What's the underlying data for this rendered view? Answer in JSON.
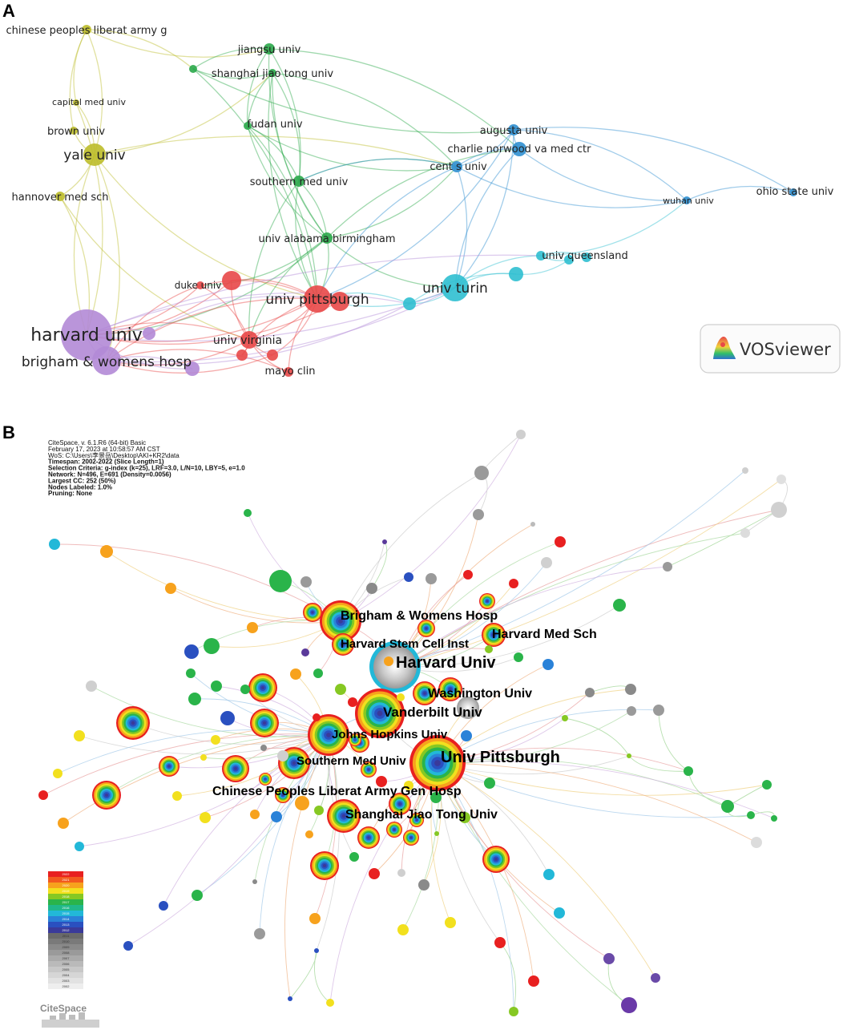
{
  "panel_a": {
    "letter": "A",
    "logo_text": "VOSviewer",
    "colors": {
      "yellow": "#bdbd2a",
      "green": "#2aa84a",
      "blue": "#2f8fd0",
      "cyan": "#2fbfd0",
      "red": "#e84848",
      "purple": "#b28ad6"
    },
    "nodes": [
      {
        "id": "chinese_pla",
        "label": "chinese peoples liberat army g",
        "cluster": "yellow"
      },
      {
        "id": "capital_med",
        "label": "capital med univ",
        "cluster": "yellow"
      },
      {
        "id": "brown",
        "label": "brown univ",
        "cluster": "yellow"
      },
      {
        "id": "yale",
        "label": "yale univ",
        "cluster": "yellow"
      },
      {
        "id": "hannover",
        "label": "hannover med sch",
        "cluster": "yellow"
      },
      {
        "id": "green_small",
        "label": "",
        "cluster": "green"
      },
      {
        "id": "jiangsu",
        "label": "jiangsu univ",
        "cluster": "green"
      },
      {
        "id": "sjtu",
        "label": "shanghai jiao tong univ",
        "cluster": "green"
      },
      {
        "id": "fudan",
        "label": "fudan univ",
        "cluster": "green"
      },
      {
        "id": "southern_med",
        "label": "southern med univ",
        "cluster": "green"
      },
      {
        "id": "uab",
        "label": "univ alabama birmingham",
        "cluster": "green"
      },
      {
        "id": "augusta",
        "label": "augusta univ",
        "cluster": "blue"
      },
      {
        "id": "charlie",
        "label": "charlie norwood va med ctr",
        "cluster": "blue"
      },
      {
        "id": "cent_s",
        "label": "cent s univ",
        "cluster": "blue"
      },
      {
        "id": "wuhan",
        "label": "wuhan univ",
        "cluster": "blue"
      },
      {
        "id": "ohio",
        "label": "ohio state univ",
        "cluster": "blue"
      },
      {
        "id": "queensland",
        "label": "univ queensland",
        "cluster": "cyan"
      },
      {
        "id": "cyan_a",
        "label": "",
        "cluster": "cyan"
      },
      {
        "id": "cyan_b",
        "label": "",
        "cluster": "cyan"
      },
      {
        "id": "turin",
        "label": "univ turin",
        "cluster": "cyan"
      },
      {
        "id": "cyan_c",
        "label": "",
        "cluster": "cyan"
      },
      {
        "id": "cyan_d",
        "label": "",
        "cluster": "cyan"
      },
      {
        "id": "pitt",
        "label": "univ pittsburgh",
        "cluster": "red"
      },
      {
        "id": "red_r1",
        "label": "",
        "cluster": "red"
      },
      {
        "id": "red_r2",
        "label": "",
        "cluster": "red"
      },
      {
        "id": "duke",
        "label": "duke univ",
        "cluster": "red"
      },
      {
        "id": "virginia",
        "label": "univ virginia",
        "cluster": "red"
      },
      {
        "id": "red_v1",
        "label": "",
        "cluster": "red"
      },
      {
        "id": "red_v2",
        "label": "",
        "cluster": "red"
      },
      {
        "id": "mayo",
        "label": "mayo clin",
        "cluster": "red"
      },
      {
        "id": "harvard",
        "label": "harvard univ",
        "cluster": "purple"
      },
      {
        "id": "brigham",
        "label": "brigham & womens hosp",
        "cluster": "purple"
      },
      {
        "id": "purple_a",
        "label": "",
        "cluster": "purple"
      },
      {
        "id": "purple_b",
        "label": "",
        "cluster": "purple"
      }
    ],
    "edges": [
      [
        "chinese_pla",
        "brown"
      ],
      [
        "chinese_pla",
        "yale"
      ],
      [
        "chinese_pla",
        "capital_med"
      ],
      [
        "chinese_pla",
        "green_small"
      ],
      [
        "chinese_pla",
        "jiangsu"
      ],
      [
        "capital_med",
        "yale"
      ],
      [
        "brown",
        "yale"
      ],
      [
        "yale",
        "hannover"
      ],
      [
        "yale",
        "harvard"
      ],
      [
        "yale",
        "brigham"
      ],
      [
        "yale",
        "sjtu"
      ],
      [
        "yale",
        "cent_s"
      ],
      [
        "yale",
        "pitt"
      ],
      [
        "hannover",
        "harvard"
      ],
      [
        "hannover",
        "virginia"
      ],
      [
        "capital_med",
        "harvard"
      ],
      [
        "green_small",
        "sjtu"
      ],
      [
        "green_small",
        "jiangsu"
      ],
      [
        "green_small",
        "augusta"
      ],
      [
        "green_small",
        "pitt"
      ],
      [
        "jiangsu",
        "fudan"
      ],
      [
        "jiangsu",
        "southern_med"
      ],
      [
        "jiangsu",
        "uab"
      ],
      [
        "jiangsu",
        "charlie"
      ],
      [
        "sjtu",
        "fudan"
      ],
      [
        "sjtu",
        "southern_med"
      ],
      [
        "sjtu",
        "uab"
      ],
      [
        "sjtu",
        "cent_s"
      ],
      [
        "sjtu",
        "pitt"
      ],
      [
        "fudan",
        "southern_med"
      ],
      [
        "fudan",
        "uab"
      ],
      [
        "fudan",
        "pitt"
      ],
      [
        "fudan",
        "cent_s"
      ],
      [
        "southern_med",
        "uab"
      ],
      [
        "southern_med",
        "pitt"
      ],
      [
        "southern_med",
        "cent_s"
      ],
      [
        "southern_med",
        "virginia"
      ],
      [
        "uab",
        "pitt"
      ],
      [
        "uab",
        "virginia"
      ],
      [
        "uab",
        "duke"
      ],
      [
        "uab",
        "cent_s"
      ],
      [
        "uab",
        "charlie"
      ],
      [
        "uab",
        "turin"
      ],
      [
        "uab",
        "harvard"
      ],
      [
        "augusta",
        "charlie"
      ],
      [
        "augusta",
        "cent_s"
      ],
      [
        "charlie",
        "cent_s"
      ],
      [
        "augusta",
        "wuhan"
      ],
      [
        "charlie",
        "wuhan"
      ],
      [
        "wuhan",
        "ohio"
      ],
      [
        "cent_s",
        "wuhan"
      ],
      [
        "augusta",
        "ohio"
      ],
      [
        "cent_s",
        "pitt"
      ],
      [
        "cent_s",
        "turin"
      ],
      [
        "cent_s",
        "southern_med"
      ],
      [
        "augusta",
        "pitt"
      ],
      [
        "charlie",
        "turin"
      ],
      [
        "augusta",
        "turin"
      ],
      [
        "queensland",
        "cyan_a"
      ],
      [
        "queensland",
        "cyan_b"
      ],
      [
        "queensland",
        "wuhan"
      ],
      [
        "cyan_a",
        "cyan_c"
      ],
      [
        "cyan_c",
        "turin"
      ],
      [
        "turin",
        "cyan_d"
      ],
      [
        "cyan_d",
        "pitt"
      ],
      [
        "turin",
        "pitt"
      ],
      [
        "cyan_c",
        "cyan_d"
      ],
      [
        "turin",
        "queensland"
      ],
      [
        "pitt",
        "red_r1"
      ],
      [
        "pitt",
        "red_r2"
      ],
      [
        "pitt",
        "duke"
      ],
      [
        "pitt",
        "virginia"
      ],
      [
        "pitt",
        "red_v1"
      ],
      [
        "pitt",
        "red_v2"
      ],
      [
        "pitt",
        "mayo"
      ],
      [
        "pitt",
        "harvard"
      ],
      [
        "pitt",
        "brigham"
      ],
      [
        "duke",
        "harvard"
      ],
      [
        "duke",
        "brigham"
      ],
      [
        "duke",
        "virginia"
      ],
      [
        "virginia",
        "harvard"
      ],
      [
        "virginia",
        "brigham"
      ],
      [
        "virginia",
        "mayo"
      ],
      [
        "virginia",
        "red_v1"
      ],
      [
        "virginia",
        "red_v2"
      ],
      [
        "red_r1",
        "harvard"
      ],
      [
        "red_r1",
        "virginia"
      ],
      [
        "red_r2",
        "harvard"
      ],
      [
        "mayo",
        "brigham"
      ],
      [
        "red_v2",
        "brigham"
      ],
      [
        "harvard",
        "brigham"
      ],
      [
        "harvard",
        "purple_a"
      ],
      [
        "harvard",
        "purple_b"
      ],
      [
        "brigham",
        "purple_b"
      ],
      [
        "harvard",
        "turin"
      ],
      [
        "harvard",
        "cyan_d"
      ],
      [
        "brigham",
        "cyan_d"
      ],
      [
        "harvard",
        "queensland"
      ],
      [
        "brigham",
        "turin"
      ],
      [
        "purple_a",
        "pitt"
      ]
    ]
  },
  "panel_b": {
    "letter": "B",
    "metadata": [
      "CiteSpace, v. 6.1.R6 (64-bit) Basic",
      "February 17, 2023 at 10:58:57 AM CST",
      "WoS: C:\\Users\\李景岳\\Desktop\\AKI+KR2\\data",
      "Timespan: 2002-2022 (Slice Length=1)",
      "Selection Criteria: g-index (k=25), LRF=3.0, L/N=10, LBY=5, e=1.0",
      "Network: N=496, E=691 (Density=0.0056)",
      "Largest CC: 252 (50%)",
      "Nodes Labeled: 1.0%",
      "Pruning: None"
    ],
    "labels": [
      "Brigham & Womens Hosp",
      "Harvard Med Sch",
      "Harvard Stem Cell Inst",
      "Harvard Univ",
      "Washington Univ",
      "Vanderbilt Univ",
      "Johns Hopkins Univ",
      "Southern Med Univ",
      "Univ Pittsburgh",
      "Chinese Peoples Liberat Army Gen Hosp",
      "Shanghai Jiao Tong Univ"
    ],
    "legend_years": [
      "2022",
      "2021",
      "2020",
      "2019",
      "2018",
      "2017",
      "2016",
      "2015",
      "2014",
      "2013",
      "2012",
      "2011",
      "2010",
      "2009",
      "2008",
      "2007",
      "2006",
      "2005",
      "2004",
      "2003",
      "2002"
    ],
    "logo_text": "CiteSpace"
  }
}
